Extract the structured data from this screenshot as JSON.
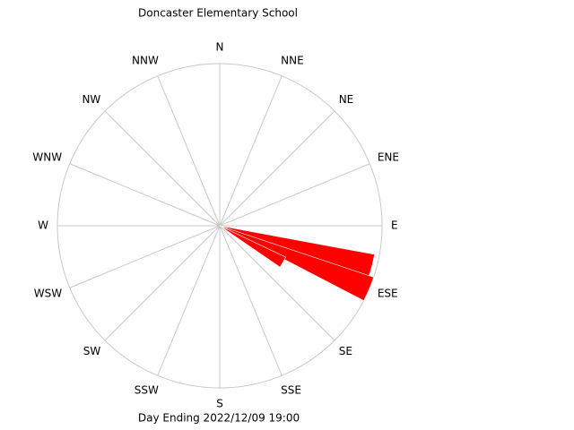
{
  "chart_data": {
    "type": "windrose",
    "title": "Doncaster Elementary School",
    "footer": "Day Ending 2022/12/09 19:00",
    "directions": [
      "N",
      "NNE",
      "NE",
      "ENE",
      "E",
      "ESE",
      "SE",
      "SSE",
      "S",
      "SSW",
      "SW",
      "WSW",
      "W",
      "WNW",
      "NW",
      "NNW"
    ],
    "x": [
      105,
      113,
      120
    ],
    "values": [
      97,
      100,
      45
    ],
    "sector_width": 9,
    "rlim": [
      0,
      100
    ],
    "color": "#ff0000",
    "grid": true
  }
}
